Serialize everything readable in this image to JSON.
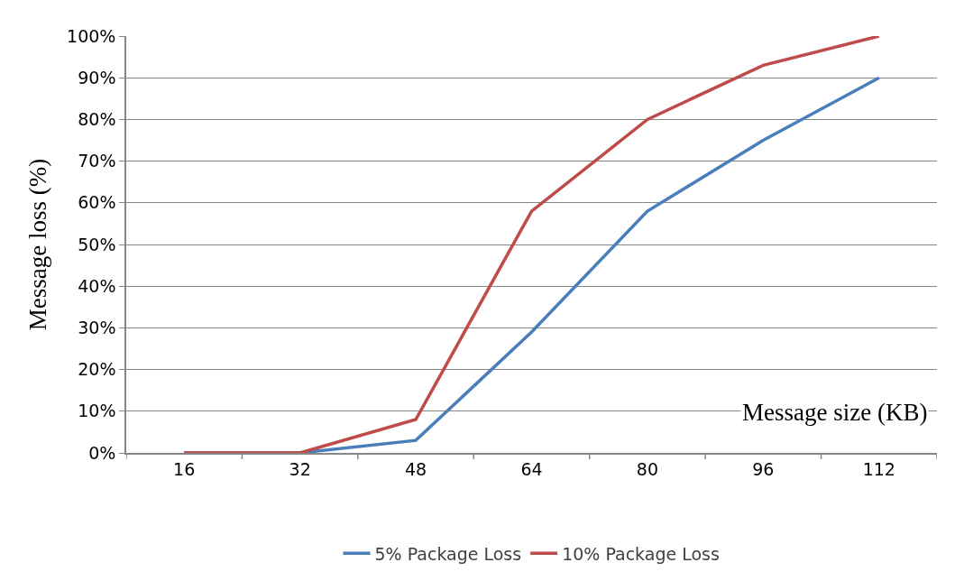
{
  "chart_data": {
    "type": "line",
    "xlabel": "Message size (KB)",
    "ylabel": "Message loss (%)",
    "categories": [
      "16",
      "32",
      "48",
      "64",
      "80",
      "96",
      "112"
    ],
    "series": [
      {
        "name": "5% Package Loss",
        "color": "#4a7ebb",
        "values": [
          0,
          0,
          3,
          29,
          58,
          75,
          90
        ]
      },
      {
        "name": "10% Package Loss",
        "color": "#be4b48",
        "values": [
          0,
          0,
          8,
          58,
          80,
          93,
          100
        ]
      }
    ],
    "ylim": [
      0,
      100
    ],
    "yticks": [
      {
        "value": 0,
        "label": "0%"
      },
      {
        "value": 10,
        "label": "10%"
      },
      {
        "value": 20,
        "label": "20%"
      },
      {
        "value": 30,
        "label": "30%"
      },
      {
        "value": 40,
        "label": "40%"
      },
      {
        "value": 50,
        "label": "50%"
      },
      {
        "value": 60,
        "label": "60%"
      },
      {
        "value": 70,
        "label": "70%"
      },
      {
        "value": 80,
        "label": "80%"
      },
      {
        "value": 90,
        "label": "90%"
      },
      {
        "value": 100,
        "label": "100%"
      }
    ],
    "grid": "y",
    "legend": "bottom",
    "marker": "none",
    "line_style": "solid"
  }
}
